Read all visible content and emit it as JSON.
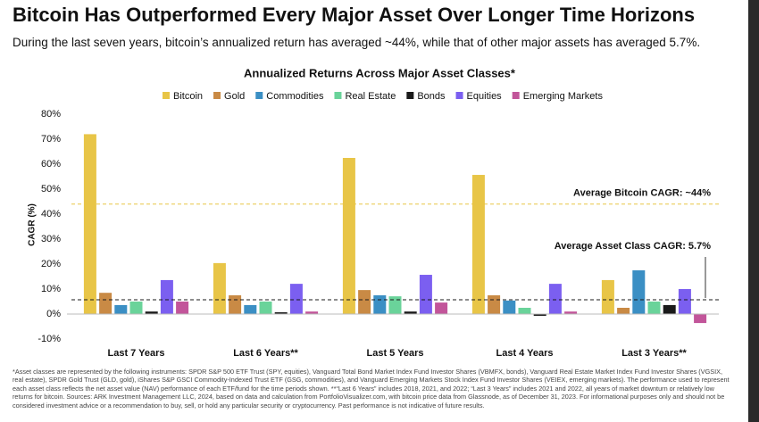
{
  "chart_data": {
    "type": "bar",
    "title": "Bitcoin Has Outperformed Every Major Asset Over Longer Time Horizons",
    "subtitle": "During the last seven years, bitcoin’s annualized return has averaged ~44%, while that of other major assets has averaged 5.7%.",
    "chart_title": "Annualized Returns Across Major Asset Classes*",
    "y_label": "CAGR (%)",
    "categories": [
      "Last 7 Years",
      "Last 6 Years**",
      "Last 5 Years",
      "Last 4 Years",
      "Last 3 Years**"
    ],
    "series": [
      {
        "name": "Bitcoin",
        "color": "#e8c547",
        "values": [
          72,
          20.4,
          62.5,
          55.7,
          13.6
        ]
      },
      {
        "name": "Gold",
        "color": "#c98a45",
        "values": [
          8.5,
          7.5,
          9.6,
          7.5,
          2.5
        ]
      },
      {
        "name": "Commodities",
        "color": "#3b8fc4",
        "values": [
          3.6,
          3.6,
          7.5,
          5.4,
          17.5
        ]
      },
      {
        "name": "Real Estate",
        "color": "#6ad39a",
        "values": [
          5,
          5,
          7.1,
          2.5,
          5
        ]
      },
      {
        "name": "Bonds",
        "color": "#1a1a1a",
        "values": [
          1,
          0.7,
          1,
          -0.7,
          3.6
        ]
      },
      {
        "name": "Equities",
        "color": "#7b5ff0",
        "values": [
          13.6,
          12.1,
          15.7,
          12.1,
          10
        ]
      },
      {
        "name": "Emerging Markets",
        "color": "#c2559a",
        "values": [
          5,
          1,
          4.6,
          1,
          -3.6
        ]
      }
    ],
    "ylim": [
      -10,
      80
    ],
    "yticks": [
      {
        "value": -10,
        "label": "-10%"
      },
      {
        "value": 0,
        "label": "0%"
      },
      {
        "value": 10,
        "label": "10%"
      },
      {
        "value": 20,
        "label": "20%"
      },
      {
        "value": 30,
        "label": "30%"
      },
      {
        "value": 40,
        "label": "40%"
      },
      {
        "value": 50,
        "label": "50%"
      },
      {
        "value": 60,
        "label": "60%"
      },
      {
        "value": 70,
        "label": "70%"
      },
      {
        "value": 80,
        "label": "80%"
      }
    ],
    "grid": false,
    "reference_lines": [
      {
        "label": "Average Bitcoin CAGR: ~44%",
        "value": 44,
        "color": "#e8c547"
      },
      {
        "label": "Average Asset Class CAGR: 5.7%",
        "value": 5.7,
        "color": "#1a1a1a"
      }
    ],
    "footnote": "*Asset classes are represented by the following instruments: SPDR S&P 500 ETF Trust (SPY, equities), Vanguard Total Bond Market Index Fund Investor Shares (VBMFX, bonds), Vanguard Real Estate Market Index Fund Investor Shares (VGSIX, real estate), SPDR Gold Trust (GLD, gold), iShares S&P GSCI Commodity-Indexed Trust ETF (GSG, commodities), and Vanguard Emerging Markets Stock Index Fund Investor Shares (VEIEX, emerging markets). The performance used to represent each asset class reflects the net asset value (NAV) performance of each ETF/fund for the time periods shown. **“Last 6 Years” includes 2018, 2021, and 2022; “Last 3 Years” includes 2021 and 2022, all years of market downturn or relatively low returns for bitcoin. Sources: ARK Investment Management LLC, 2024, based on data and calculation from PortfolioVisualizer.com, with bitcoin price data from Glassnode, as of December 31, 2023. For informational purposes only and should not be considered investment advice or a recommendation to buy, sell, or hold any particular security or cryptocurrency. Past performance is not indicative of future results."
  }
}
